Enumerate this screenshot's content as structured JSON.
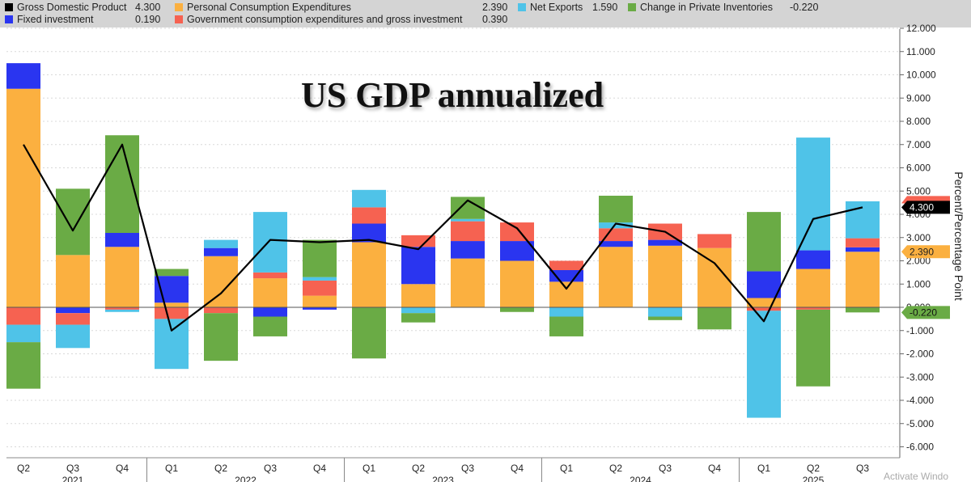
{
  "colors": {
    "gdp": "#000000",
    "fixed_investment": "#2a35f0",
    "pce": "#fbb040",
    "government": "#f66251",
    "net_exports": "#4fc3e8",
    "inventories": "#6aab45",
    "legend_bg": "#d4d4d4"
  },
  "legend": [
    {
      "label": "Gross Domestic Product",
      "value": "4.300",
      "color_key": "gdp"
    },
    {
      "label": "Personal Consumption Expenditures",
      "value": "2.390",
      "color_key": "pce"
    },
    {
      "label": "Net Exports",
      "value": "1.590",
      "color_key": "net_exports"
    },
    {
      "label": "Change in Private Inventories",
      "value": "-0.220",
      "color_key": "inventories"
    },
    {
      "label": "Fixed investment",
      "value": "0.190",
      "color_key": "fixed_investment"
    },
    {
      "label": "Government consumption expenditures and gross investment",
      "value": "0.390",
      "color_key": "government"
    }
  ],
  "watermark": "Activate Windo",
  "chart_data": {
    "type": "bar",
    "stacked": true,
    "title": "US GDP annualized",
    "ylabel": "Percent/Percentage Point",
    "ylim": [
      -6.5,
      12.3
    ],
    "yticks": [
      -6,
      -5,
      -4,
      -3,
      -2,
      -1,
      0,
      1,
      2,
      3,
      4,
      5,
      6,
      7,
      8,
      9,
      10,
      11,
      12
    ],
    "ytick_labels": [
      "-6.000",
      "-5.000",
      "-4.000",
      "-3.000",
      "-2.000",
      "-1.000",
      "0.000",
      "1.000",
      "2.000",
      "3.000",
      "4.000",
      "5.000",
      "6.000",
      "7.000",
      "8.000",
      "9.000",
      "10.000",
      "11.000",
      "12.000"
    ],
    "grid": true,
    "categories": [
      "Q2",
      "Q3",
      "Q4",
      "Q1",
      "Q2",
      "Q3",
      "Q4",
      "Q1",
      "Q2",
      "Q3",
      "Q4",
      "Q1",
      "Q2",
      "Q3",
      "Q4",
      "Q1",
      "Q2",
      "Q3"
    ],
    "years": [
      {
        "label": "2021",
        "start": 0,
        "end": 2
      },
      {
        "label": "2022",
        "start": 3,
        "end": 6
      },
      {
        "label": "2023",
        "start": 7,
        "end": 10
      },
      {
        "label": "2024",
        "start": 11,
        "end": 14
      },
      {
        "label": "2025",
        "start": 15,
        "end": 17
      }
    ],
    "series": [
      {
        "name": "Personal Consumption Expenditures",
        "color_key": "pce",
        "values": [
          9.4,
          2.25,
          2.6,
          0.2,
          2.2,
          1.25,
          0.5,
          2.8,
          1.0,
          2.1,
          2.0,
          1.1,
          2.6,
          2.65,
          2.55,
          0.4,
          1.65,
          2.39
        ]
      },
      {
        "name": "Fixed investment",
        "color_key": "fixed_investment",
        "values": [
          1.1,
          -0.25,
          0.6,
          1.15,
          0.35,
          -0.4,
          -0.1,
          0.8,
          1.6,
          0.75,
          0.85,
          0.5,
          0.25,
          0.25,
          0.0,
          1.15,
          0.8,
          0.19
        ]
      },
      {
        "name": "Government consumption expenditures and gross investment",
        "color_key": "government",
        "values": [
          -0.75,
          -0.5,
          -0.1,
          -0.5,
          -0.25,
          0.25,
          0.65,
          0.7,
          0.5,
          0.85,
          0.8,
          0.4,
          0.55,
          0.7,
          0.6,
          -0.15,
          -0.1,
          0.39
        ]
      },
      {
        "name": "Net Exports",
        "color_key": "net_exports",
        "values": [
          -0.75,
          -1.0,
          -0.1,
          -2.15,
          0.35,
          2.6,
          0.15,
          0.75,
          -0.25,
          0.1,
          0.0,
          -0.4,
          0.25,
          -0.4,
          0.0,
          -4.6,
          4.85,
          1.59
        ]
      },
      {
        "name": "Change in Private Inventories",
        "color_key": "inventories",
        "values": [
          -2.0,
          2.85,
          4.2,
          0.3,
          -2.05,
          -0.85,
          1.6,
          -2.2,
          -0.4,
          0.95,
          -0.2,
          -0.85,
          1.15,
          -0.15,
          -0.95,
          2.55,
          -3.3,
          -0.22
        ]
      },
      {
        "name": "Gross Domestic Product",
        "type": "line",
        "color_key": "gdp",
        "values": [
          7.0,
          3.3,
          7.0,
          -1.0,
          0.6,
          2.9,
          2.8,
          2.9,
          2.5,
          4.6,
          3.4,
          0.8,
          3.6,
          3.25,
          1.9,
          -0.6,
          3.8,
          4.3
        ]
      }
    ],
    "value_tags": [
      {
        "text": "4.300",
        "value": 4.3,
        "color_key": "gdp",
        "text_color": "#ffffff",
        "hidden_color": "#f66251"
      },
      {
        "text": "2.390",
        "value": 2.39,
        "color_key": "pce",
        "text_color": "#222222"
      },
      {
        "text": "-0.220",
        "value": -0.22,
        "color_key": "inventories",
        "text_color": "#111111"
      }
    ]
  }
}
